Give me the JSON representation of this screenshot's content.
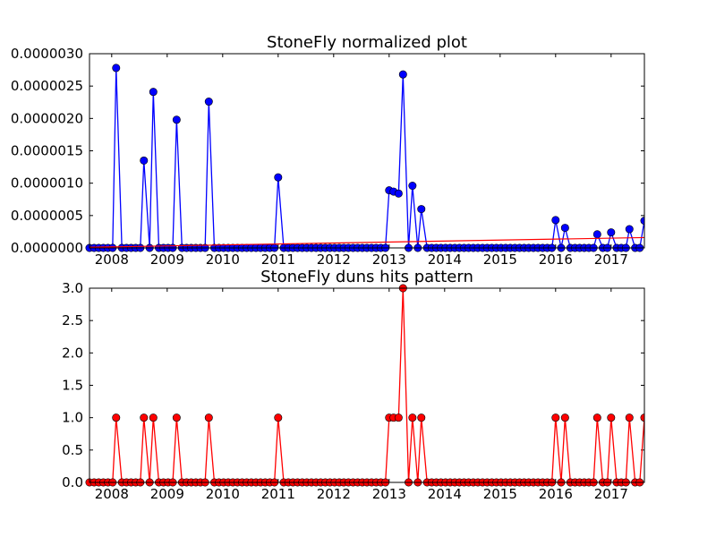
{
  "chart_data": [
    {
      "type": "line",
      "title": "StoneFly normalized plot",
      "xlabel": "",
      "ylabel": "",
      "xlim": [
        2007.6,
        2017.6
      ],
      "ylim": [
        0,
        3e-06
      ],
      "x_ticks": [
        "2008",
        "2009",
        "2010",
        "2011",
        "2012",
        "2013",
        "2014",
        "2015",
        "2016",
        "2017"
      ],
      "y_ticks": [
        "0.0000000",
        "0.0000005",
        "0.0000010",
        "0.0000015",
        "0.0000020",
        "0.0000025",
        "0.0000030"
      ],
      "colors": {
        "series": "#0000ff",
        "trend": "#ff0000"
      },
      "series": [
        {
          "x": [
            2008.08,
            2008.58,
            2008.75,
            2009.17,
            2009.75,
            2011.0,
            2013.0,
            2013.08,
            2013.17,
            2013.25,
            2013.42,
            2013.58,
            2016.0,
            2016.17,
            2016.75,
            2017.0,
            2017.33,
            2017.6
          ],
          "y": [
            2.78e-06,
            1.35e-06,
            2.41e-06,
            1.98e-06,
            2.26e-06,
            1.09e-06,
            8.9e-07,
            8.7e-07,
            8.4e-07,
            2.68e-06,
            9.6e-07,
            6e-07,
            4.3e-07,
            3.1e-07,
            2.1e-07,
            2.4e-07,
            2.9e-07,
            4.2e-07
          ]
        }
      ],
      "trend": {
        "x": [
          2007.6,
          2017.6
        ],
        "y": [
          1e-08,
          1.6e-07
        ]
      }
    },
    {
      "type": "line",
      "title": "StoneFly duns hits pattern",
      "xlabel": "",
      "ylabel": "",
      "xlim": [
        2007.6,
        2017.6
      ],
      "ylim": [
        0,
        3
      ],
      "x_ticks": [
        "2008",
        "2009",
        "2010",
        "2011",
        "2012",
        "2013",
        "2014",
        "2015",
        "2016",
        "2017"
      ],
      "y_ticks": [
        "0.0",
        "0.5",
        "1.0",
        "1.5",
        "2.0",
        "2.5",
        "3.0"
      ],
      "colors": {
        "series": "#ff0000"
      },
      "series": [
        {
          "x": [
            2008.08,
            2008.58,
            2008.75,
            2009.17,
            2009.75,
            2011.0,
            2013.0,
            2013.08,
            2013.17,
            2013.25,
            2013.42,
            2013.58,
            2016.0,
            2016.17,
            2016.75,
            2017.0,
            2017.33,
            2017.6
          ],
          "y": [
            1,
            1,
            1,
            1,
            1,
            1,
            1,
            1,
            1,
            3,
            1,
            1,
            1,
            1,
            1,
            1,
            1,
            1
          ]
        }
      ]
    }
  ]
}
